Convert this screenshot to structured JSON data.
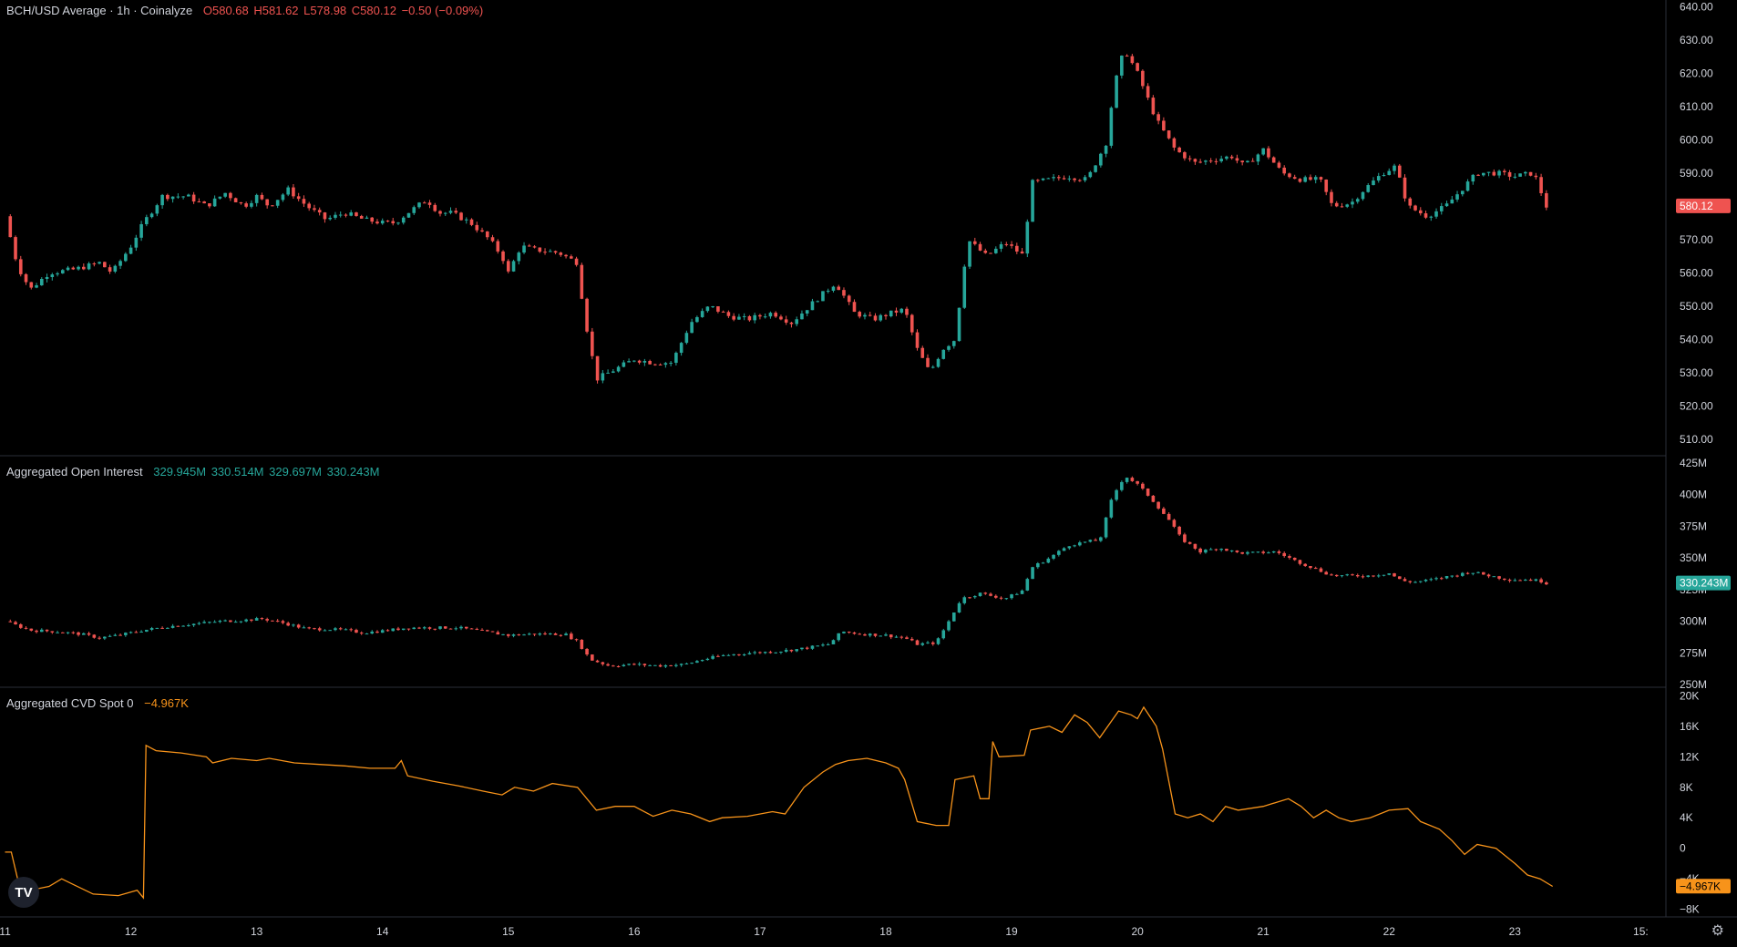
{
  "colors": {
    "up": "#26a69a",
    "down": "#ef5350",
    "cvd": "#f7931a",
    "text": "#d1d4dc",
    "grid": "#2a2e39",
    "bg": "#000000"
  },
  "icons": {
    "logo": "tradingview-logo",
    "settings": "gear-icon"
  },
  "logo_text": "TV",
  "settings_glyph": "⚙",
  "legend": {
    "price": {
      "title": "BCH/USD Average · 1h · Coinalyze",
      "o": "O580.68",
      "h": "H581.62",
      "l": "L578.98",
      "c": "C580.12",
      "chg": "−0.50 (−0.09%)"
    },
    "oi": {
      "title": "Aggregated Open Interest",
      "o": "329.945M",
      "h": "330.514M",
      "l": "329.697M",
      "c": "330.243M"
    },
    "cvd": {
      "title": "Aggregated CVD Spot 0",
      "value": "−4.967K"
    }
  },
  "chart_data": [
    {
      "id": "price",
      "type": "candlestick",
      "title": "BCH/USD Average · 1h · Coinalyze",
      "ylim": [
        505,
        642
      ],
      "y_ticks": [
        "640.00",
        "630.00",
        "620.00",
        "610.00",
        "600.00",
        "590.00",
        "580.00",
        "570.00",
        "560.00",
        "550.00",
        "540.00",
        "530.00",
        "520.00",
        "510.00"
      ],
      "y_tick_values": [
        640,
        630,
        620,
        610,
        600,
        590,
        580,
        570,
        560,
        550,
        540,
        530,
        520,
        510
      ],
      "last_value": 580.12,
      "last_label": "580.12",
      "series_close": [
        [
          11.0,
          577
        ],
        [
          11.1,
          562
        ],
        [
          11.2,
          555
        ],
        [
          11.35,
          560
        ],
        [
          11.55,
          561
        ],
        [
          11.75,
          563
        ],
        [
          11.85,
          560
        ],
        [
          12.0,
          568
        ],
        [
          12.1,
          575
        ],
        [
          12.25,
          583
        ],
        [
          12.45,
          583
        ],
        [
          12.6,
          580
        ],
        [
          12.75,
          584
        ],
        [
          12.9,
          580
        ],
        [
          13.0,
          583
        ],
        [
          13.1,
          580
        ],
        [
          13.25,
          585
        ],
        [
          13.4,
          580
        ],
        [
          13.55,
          576
        ],
        [
          13.7,
          578
        ],
        [
          13.85,
          576
        ],
        [
          14.0,
          575
        ],
        [
          14.1,
          575
        ],
        [
          14.2,
          578
        ],
        [
          14.35,
          582
        ],
        [
          14.45,
          578
        ],
        [
          14.55,
          578
        ],
        [
          14.7,
          575
        ],
        [
          14.85,
          570
        ],
        [
          14.95,
          565
        ],
        [
          15.0,
          560
        ],
        [
          15.1,
          568
        ],
        [
          15.2,
          567
        ],
        [
          15.4,
          566
        ],
        [
          15.55,
          563
        ],
        [
          15.6,
          548
        ],
        [
          15.7,
          528
        ],
        [
          15.85,
          531
        ],
        [
          16.0,
          534
        ],
        [
          16.15,
          533
        ],
        [
          16.3,
          533
        ],
        [
          16.45,
          545
        ],
        [
          16.6,
          550
        ],
        [
          16.75,
          547
        ],
        [
          16.9,
          546
        ],
        [
          17.1,
          548
        ],
        [
          17.25,
          545
        ],
        [
          17.45,
          552
        ],
        [
          17.6,
          557
        ],
        [
          17.75,
          548
        ],
        [
          17.9,
          546
        ],
        [
          18.05,
          548
        ],
        [
          18.15,
          549
        ],
        [
          18.25,
          537
        ],
        [
          18.35,
          530
        ],
        [
          18.45,
          537
        ],
        [
          18.55,
          540
        ],
        [
          18.65,
          570
        ],
        [
          18.8,
          565
        ],
        [
          18.95,
          569
        ],
        [
          19.1,
          565
        ],
        [
          19.15,
          587
        ],
        [
          19.3,
          588
        ],
        [
          19.45,
          589
        ],
        [
          19.6,
          588
        ],
        [
          19.75,
          599
        ],
        [
          19.8,
          612
        ],
        [
          19.85,
          622
        ],
        [
          19.9,
          627
        ],
        [
          20.0,
          620
        ],
        [
          20.15,
          606
        ],
        [
          20.3,
          597
        ],
        [
          20.45,
          593
        ],
        [
          20.6,
          594
        ],
        [
          20.75,
          595
        ],
        [
          20.85,
          592
        ],
        [
          21.0,
          597
        ],
        [
          21.15,
          590
        ],
        [
          21.3,
          588
        ],
        [
          21.45,
          588
        ],
        [
          21.55,
          580
        ],
        [
          21.7,
          581
        ],
        [
          21.8,
          585
        ],
        [
          21.95,
          590
        ],
        [
          22.05,
          592
        ],
        [
          22.15,
          580
        ],
        [
          22.3,
          577
        ],
        [
          22.45,
          580
        ],
        [
          22.55,
          584
        ],
        [
          22.7,
          590
        ],
        [
          22.85,
          590
        ],
        [
          23.0,
          589
        ],
        [
          23.15,
          590
        ],
        [
          23.2,
          585
        ],
        [
          23.25,
          580
        ]
      ]
    },
    {
      "id": "oi",
      "type": "candlestick",
      "title": "Aggregated Open Interest",
      "ylim": [
        248,
        430
      ],
      "y_ticks": [
        "425M",
        "400M",
        "375M",
        "350M",
        "325M",
        "300M",
        "275M",
        "250M"
      ],
      "y_tick_values": [
        425,
        400,
        375,
        350,
        325,
        300,
        275,
        250
      ],
      "last_value": 330.243,
      "last_label": "330.243M",
      "series_close": [
        [
          11.0,
          300
        ],
        [
          11.2,
          293
        ],
        [
          11.4,
          292
        ],
        [
          11.6,
          290
        ],
        [
          11.75,
          287
        ],
        [
          11.9,
          289
        ],
        [
          12.1,
          293
        ],
        [
          12.3,
          296
        ],
        [
          12.5,
          298
        ],
        [
          12.7,
          300
        ],
        [
          12.9,
          301
        ],
        [
          13.05,
          302
        ],
        [
          13.2,
          299
        ],
        [
          13.4,
          294
        ],
        [
          13.55,
          294
        ],
        [
          13.7,
          293
        ],
        [
          13.85,
          291
        ],
        [
          14.05,
          293
        ],
        [
          14.2,
          295
        ],
        [
          14.4,
          295
        ],
        [
          14.6,
          295
        ],
        [
          14.8,
          292
        ],
        [
          15.0,
          289
        ],
        [
          15.2,
          290
        ],
        [
          15.45,
          290
        ],
        [
          15.55,
          284
        ],
        [
          15.65,
          270
        ],
        [
          15.8,
          265
        ],
        [
          16.0,
          266
        ],
        [
          16.2,
          265
        ],
        [
          16.4,
          266
        ],
        [
          16.55,
          270
        ],
        [
          16.7,
          273
        ],
        [
          16.9,
          275
        ],
        [
          17.1,
          276
        ],
        [
          17.3,
          278
        ],
        [
          17.55,
          282
        ],
        [
          17.65,
          292
        ],
        [
          17.8,
          290
        ],
        [
          18.0,
          289
        ],
        [
          18.15,
          287
        ],
        [
          18.25,
          282
        ],
        [
          18.4,
          283
        ],
        [
          18.5,
          300
        ],
        [
          18.6,
          318
        ],
        [
          18.75,
          322
        ],
        [
          18.95,
          318
        ],
        [
          19.1,
          325
        ],
        [
          19.15,
          342
        ],
        [
          19.3,
          350
        ],
        [
          19.45,
          360
        ],
        [
          19.6,
          363
        ],
        [
          19.7,
          364
        ],
        [
          19.8,
          398
        ],
        [
          19.9,
          415
        ],
        [
          20.0,
          408
        ],
        [
          20.1,
          398
        ],
        [
          20.25,
          380
        ],
        [
          20.35,
          365
        ],
        [
          20.5,
          355
        ],
        [
          20.65,
          358
        ],
        [
          20.8,
          354
        ],
        [
          20.95,
          354
        ],
        [
          21.1,
          355
        ],
        [
          21.25,
          348
        ],
        [
          21.4,
          342
        ],
        [
          21.55,
          336
        ],
        [
          21.7,
          336
        ],
        [
          21.85,
          336
        ],
        [
          22.0,
          338
        ],
        [
          22.1,
          332
        ],
        [
          22.2,
          331
        ],
        [
          22.35,
          333
        ],
        [
          22.5,
          336
        ],
        [
          22.65,
          339
        ],
        [
          22.8,
          336
        ],
        [
          22.95,
          333
        ],
        [
          23.1,
          333
        ],
        [
          23.2,
          332
        ],
        [
          23.25,
          330.2
        ]
      ]
    },
    {
      "id": "cvd",
      "type": "line",
      "title": "Aggregated CVD Spot 0",
      "ylim": [
        -9,
        21
      ],
      "y_ticks": [
        "20K",
        "16K",
        "12K",
        "8K",
        "4K",
        "0",
        "−4K",
        "−8K"
      ],
      "y_tick_values": [
        20,
        16,
        12,
        8,
        4,
        0,
        -4,
        -8
      ],
      "last_value": -4.967,
      "last_label": "−4.967K",
      "series": [
        [
          11.0,
          -0.5
        ],
        [
          11.05,
          -0.5
        ],
        [
          11.1,
          -4
        ],
        [
          11.2,
          -5.5
        ],
        [
          11.35,
          -5
        ],
        [
          11.45,
          -4
        ],
        [
          11.55,
          -4.8
        ],
        [
          11.7,
          -6
        ],
        [
          11.9,
          -6.2
        ],
        [
          12.05,
          -5.5
        ],
        [
          12.1,
          -6.5
        ],
        [
          12.12,
          13.5
        ],
        [
          12.2,
          12.8
        ],
        [
          12.4,
          12.5
        ],
        [
          12.6,
          12
        ],
        [
          12.65,
          11.2
        ],
        [
          12.8,
          11.8
        ],
        [
          13.0,
          11.5
        ],
        [
          13.1,
          11.8
        ],
        [
          13.3,
          11.2
        ],
        [
          13.5,
          11
        ],
        [
          13.7,
          10.8
        ],
        [
          13.9,
          10.5
        ],
        [
          14.1,
          10.5
        ],
        [
          14.15,
          11.5
        ],
        [
          14.2,
          9.5
        ],
        [
          14.4,
          8.8
        ],
        [
          14.6,
          8.2
        ],
        [
          14.8,
          7.5
        ],
        [
          14.95,
          7
        ],
        [
          15.05,
          8
        ],
        [
          15.2,
          7.5
        ],
        [
          15.35,
          8.5
        ],
        [
          15.55,
          8
        ],
        [
          15.7,
          5
        ],
        [
          15.85,
          5.5
        ],
        [
          16.0,
          5.5
        ],
        [
          16.15,
          4.2
        ],
        [
          16.3,
          5
        ],
        [
          16.45,
          4.5
        ],
        [
          16.6,
          3.5
        ],
        [
          16.7,
          4
        ],
        [
          16.9,
          4.2
        ],
        [
          17.1,
          4.8
        ],
        [
          17.2,
          4.5
        ],
        [
          17.35,
          8
        ],
        [
          17.5,
          10
        ],
        [
          17.6,
          11
        ],
        [
          17.7,
          11.5
        ],
        [
          17.85,
          11.8
        ],
        [
          18.0,
          11.2
        ],
        [
          18.1,
          10.5
        ],
        [
          18.15,
          9
        ],
        [
          18.25,
          3.5
        ],
        [
          18.4,
          3
        ],
        [
          18.5,
          3
        ],
        [
          18.55,
          9
        ],
        [
          18.7,
          9.5
        ],
        [
          18.75,
          6.5
        ],
        [
          18.82,
          6.5
        ],
        [
          18.85,
          14
        ],
        [
          18.9,
          12
        ],
        [
          19.1,
          12.2
        ],
        [
          19.15,
          15.5
        ],
        [
          19.3,
          16
        ],
        [
          19.4,
          15.2
        ],
        [
          19.5,
          17.5
        ],
        [
          19.6,
          16.5
        ],
        [
          19.7,
          14.5
        ],
        [
          19.85,
          18
        ],
        [
          19.95,
          17.5
        ],
        [
          20.0,
          17
        ],
        [
          20.05,
          18.5
        ],
        [
          20.15,
          16
        ],
        [
          20.2,
          13
        ],
        [
          20.3,
          4.5
        ],
        [
          20.4,
          4
        ],
        [
          20.5,
          4.5
        ],
        [
          20.6,
          3.5
        ],
        [
          20.7,
          5.5
        ],
        [
          20.8,
          5
        ],
        [
          21.0,
          5.5
        ],
        [
          21.2,
          6.5
        ],
        [
          21.3,
          5.5
        ],
        [
          21.4,
          4
        ],
        [
          21.5,
          5
        ],
        [
          21.6,
          4
        ],
        [
          21.7,
          3.5
        ],
        [
          21.85,
          4
        ],
        [
          22.0,
          5
        ],
        [
          22.15,
          5.2
        ],
        [
          22.25,
          3.5
        ],
        [
          22.4,
          2.5
        ],
        [
          22.5,
          1
        ],
        [
          22.6,
          -0.8
        ],
        [
          22.7,
          0.5
        ],
        [
          22.85,
          0
        ],
        [
          23.0,
          -2
        ],
        [
          23.1,
          -3.5
        ],
        [
          23.2,
          -4
        ],
        [
          23.3,
          -5
        ]
      ]
    }
  ],
  "x_axis": {
    "ticks": [
      "11",
      "12",
      "13",
      "14",
      "15",
      "16",
      "17",
      "18",
      "19",
      "20",
      "21",
      "22",
      "23",
      "15:"
    ],
    "tick_values": [
      11,
      12,
      13,
      14,
      15,
      16,
      17,
      18,
      19,
      20,
      21,
      22,
      23,
      24
    ],
    "xlim": [
      10.96,
      24.2
    ]
  }
}
